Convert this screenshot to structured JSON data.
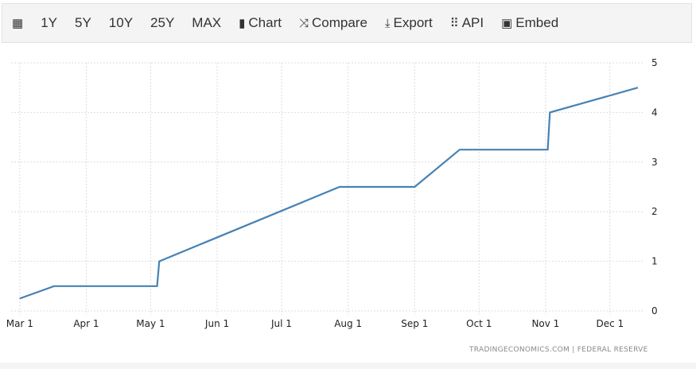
{
  "toolbar": {
    "calendar_icon": "calendar-icon",
    "ranges": [
      "1Y",
      "5Y",
      "10Y",
      "25Y",
      "MAX"
    ],
    "chart_label": "Chart",
    "compare_label": "Compare",
    "export_label": "Export",
    "api_label": "API",
    "embed_label": "Embed"
  },
  "source": "TRADINGECONOMICS.COM  |  FEDERAL RESERVE",
  "chart_data": {
    "type": "line",
    "title": "",
    "xlabel": "",
    "ylabel": "",
    "x_ticks": [
      "Mar 1",
      "Apr 1",
      "May 1",
      "Jun 1",
      "Jul 1",
      "Aug 1",
      "Sep 1",
      "Oct 1",
      "Nov 1",
      "Dec 1"
    ],
    "x_tick_dates": [
      "2022-03-01",
      "2022-04-01",
      "2022-05-01",
      "2022-06-01",
      "2022-07-01",
      "2022-08-01",
      "2022-09-01",
      "2022-10-01",
      "2022-11-01",
      "2022-12-01"
    ],
    "y_ticks": [
      0,
      1,
      2,
      3,
      4,
      5
    ],
    "ylim": [
      0,
      5
    ],
    "xlim": [
      "2022-02-25",
      "2022-12-17"
    ],
    "y_axis_position": "right",
    "grid": true,
    "color": "#4682b4",
    "series": [
      {
        "x": [
          "2022-03-01",
          "2022-03-17",
          "2022-05-04",
          "2022-05-05",
          "2022-07-28",
          "2022-09-01",
          "2022-09-22",
          "2022-11-02",
          "2022-11-03",
          "2022-12-14"
        ],
        "y": [
          0.25,
          0.5,
          0.5,
          1.0,
          2.5,
          2.5,
          3.25,
          3.25,
          4.0,
          4.5
        ]
      }
    ]
  }
}
